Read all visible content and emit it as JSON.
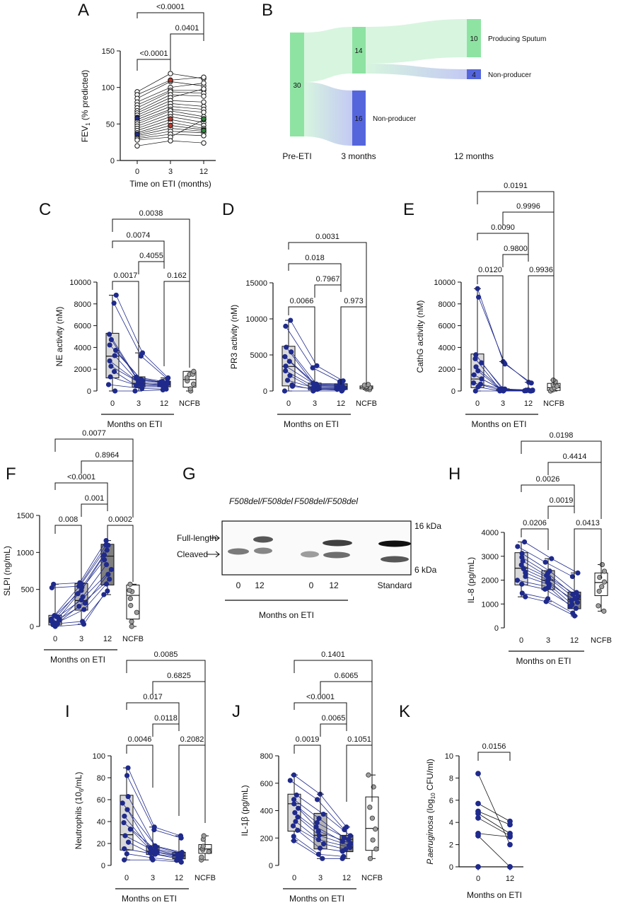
{
  "colors": {
    "navy": "#1f2a8c",
    "box_light": "#d9d9d9",
    "box_mid": "#b3b3b3",
    "box_dark": "#7f7f7f",
    "ncfb_point": "#9e9e9e",
    "green_node": "#8ee3a3",
    "blue_node": "#5566dd",
    "red_point": "#c0392b",
    "green_point": "#2e8b3e"
  },
  "xlabels": {
    "months_on_eti": "Months on ETI",
    "time_on_eti": "Time on ETI (months)"
  },
  "chart_data": [
    {
      "panel": "A",
      "type": "line",
      "ylabel": "FEV1 (% predicted)",
      "xlabel": "Time on ETI (months)",
      "categories": [
        "0",
        "3",
        "12"
      ],
      "ylim": [
        0,
        150
      ],
      "yticks": [
        0,
        50,
        100,
        150
      ],
      "series": [
        {
          "values": [
            94,
            119,
            112
          ]
        },
        {
          "values": [
            90,
            110,
            114
          ]
        },
        {
          "values": [
            85,
            108,
            102
          ]
        },
        {
          "values": [
            80,
            100,
            106
          ]
        },
        {
          "values": [
            76,
            96,
            96
          ]
        },
        {
          "values": [
            72,
            94,
            92
          ]
        },
        {
          "values": [
            68,
            90,
            88
          ]
        },
        {
          "values": [
            65,
            86,
            98
          ]
        },
        {
          "values": [
            62,
            82,
            80
          ]
        },
        {
          "values": [
            59,
            78,
            74
          ]
        },
        {
          "values": [
            56,
            74,
            70
          ]
        },
        {
          "values": [
            53,
            70,
            66
          ]
        },
        {
          "values": [
            50,
            68,
            60
          ]
        },
        {
          "values": [
            47,
            64,
            57
          ]
        },
        {
          "values": [
            44,
            60,
            52
          ]
        },
        {
          "values": [
            41,
            56,
            48
          ]
        },
        {
          "values": [
            38,
            52,
            44
          ]
        },
        {
          "values": [
            36,
            48,
            42
          ]
        },
        {
          "values": [
            34,
            44,
            40
          ]
        },
        {
          "values": [
            32,
            40,
            38
          ]
        },
        {
          "values": [
            30,
            36,
            34
          ]
        },
        {
          "values": [
            28,
            32,
            56
          ]
        },
        {
          "values": [
            20,
            27,
            24
          ]
        }
      ],
      "highlight": {
        "blue": [
          [
            0,
            58
          ],
          [
            0,
            36
          ]
        ],
        "red": [
          [
            3,
            110
          ],
          [
            3,
            57
          ],
          [
            3,
            48
          ]
        ],
        "green": [
          [
            12,
            57
          ],
          [
            12,
            41
          ]
        ]
      },
      "comparisons": [
        {
          "from": "0",
          "to": "12",
          "label": "<0.0001"
        },
        {
          "from": "3",
          "to": "12",
          "label": "0.0401"
        },
        {
          "from": "0",
          "to": "3",
          "label": "<0.0001"
        }
      ]
    },
    {
      "panel": "B",
      "type": "sankey",
      "columns": [
        "Pre-ETI",
        "3 months",
        "12 months"
      ],
      "nodes": [
        {
          "label": "",
          "value": "30",
          "color": "green"
        },
        {
          "label": "",
          "value": "14",
          "color": "green"
        },
        {
          "label": "Non-producer",
          "value": "16",
          "color": "blue"
        },
        {
          "label": "Producing Sputum",
          "value": "10",
          "color": "green"
        },
        {
          "label": "Non-producer",
          "value": "4",
          "color": "blue"
        }
      ]
    },
    {
      "panel": "C",
      "type": "box",
      "ylabel": "NE activity (nM)",
      "xlabel": "Months on ETI",
      "categories": [
        "0",
        "3",
        "12",
        "NCFB"
      ],
      "ylim": [
        0,
        10000
      ],
      "yticks": [
        0,
        2000,
        4000,
        6000,
        8000,
        10000
      ],
      "boxes": [
        {
          "q1": 1200,
          "med": 3200,
          "q3": 5300,
          "min": 0,
          "max": 8800,
          "fill": "light"
        },
        {
          "q1": 350,
          "med": 700,
          "q3": 1300,
          "min": 0,
          "max": 3500,
          "fill": "mid"
        },
        {
          "q1": 380,
          "med": 600,
          "q3": 900,
          "min": 100,
          "max": 1200,
          "fill": "dark"
        },
        {
          "q1": 350,
          "med": 1050,
          "q3": 1800,
          "min": 0,
          "max": 1800,
          "fill": "white"
        }
      ],
      "comparisons": [
        {
          "from": "0",
          "to": "NCFB",
          "label": "0.0038"
        },
        {
          "from": "0",
          "to": "12",
          "label": "0.0074"
        },
        {
          "from": "3",
          "to": "12",
          "label": "0.4055"
        },
        {
          "from": "0",
          "to": "3",
          "label": "0.0017"
        },
        {
          "from": "12",
          "to": "NCFB",
          "label": "0.162"
        }
      ]
    },
    {
      "panel": "D",
      "type": "box",
      "ylabel": "PR3 activity (nM)",
      "xlabel": "Months on ETI",
      "categories": [
        "0",
        "3",
        "12",
        "NCFB"
      ],
      "ylim": [
        0,
        15000
      ],
      "yticks": [
        0,
        5000,
        10000,
        15000
      ],
      "boxes": [
        {
          "q1": 700,
          "med": 3400,
          "q3": 6200,
          "min": 0,
          "max": 9800,
          "fill": "light"
        },
        {
          "q1": 150,
          "med": 450,
          "q3": 1100,
          "min": 0,
          "max": 3500,
          "fill": "mid"
        },
        {
          "q1": 200,
          "med": 600,
          "q3": 1000,
          "min": 0,
          "max": 1400,
          "fill": "dark"
        },
        {
          "q1": 300,
          "med": 500,
          "q3": 700,
          "min": 200,
          "max": 900,
          "fill": "white"
        }
      ],
      "comparisons": [
        {
          "from": "0",
          "to": "NCFB",
          "label": "0.0031"
        },
        {
          "from": "0",
          "to": "12",
          "label": "0.018"
        },
        {
          "from": "3",
          "to": "12",
          "label": "0.7967"
        },
        {
          "from": "0",
          "to": "3",
          "label": "0.0066"
        },
        {
          "from": "12",
          "to": "NCFB",
          "label": "0.973"
        }
      ]
    },
    {
      "panel": "E",
      "type": "box",
      "ylabel": "CathG activity (nM)",
      "xlabel": "Months on ETI",
      "categories": [
        "0",
        "3",
        "12",
        "NCFB"
      ],
      "ylim": [
        0,
        10000
      ],
      "yticks": [
        0,
        2000,
        4000,
        6000,
        8000,
        10000
      ],
      "boxes": [
        {
          "q1": 300,
          "med": 1100,
          "q3": 3400,
          "min": 0,
          "max": 9400,
          "fill": "light"
        },
        {
          "q1": 0,
          "med": 50,
          "q3": 200,
          "min": 0,
          "max": 2700,
          "fill": "mid"
        },
        {
          "q1": 0,
          "med": 50,
          "q3": 100,
          "min": 0,
          "max": 800,
          "fill": "dark"
        },
        {
          "q1": 50,
          "med": 300,
          "q3": 700,
          "min": 0,
          "max": 1000,
          "fill": "white"
        }
      ],
      "comparisons": [
        {
          "from": "0",
          "to": "NCFB",
          "label": "0.0191"
        },
        {
          "from": "3",
          "to": "NCFB",
          "label": "0.9996"
        },
        {
          "from": "0",
          "to": "12",
          "label": "0.0090"
        },
        {
          "from": "3",
          "to": "12",
          "label": "0.9800"
        },
        {
          "from": "0",
          "to": "3",
          "label": "0.0120"
        },
        {
          "from": "12",
          "to": "NCFB",
          "label": "0.9936"
        }
      ]
    },
    {
      "panel": "F",
      "type": "box",
      "ylabel": "SLPI (ng/mL)",
      "xlabel": "Months on ETI",
      "categories": [
        "0",
        "3",
        "12",
        "NCFB"
      ],
      "ylim": [
        0,
        1500
      ],
      "yticks": [
        0,
        500,
        1000,
        1500
      ],
      "boxes": [
        {
          "q1": 20,
          "med": 60,
          "q3": 150,
          "min": 0,
          "max": 570,
          "fill": "light"
        },
        {
          "q1": 220,
          "med": 350,
          "q3": 580,
          "min": 30,
          "max": 590,
          "fill": "mid"
        },
        {
          "q1": 560,
          "med": 950,
          "q3": 1110,
          "min": 430,
          "max": 1160,
          "fill": "dark"
        },
        {
          "q1": 100,
          "med": 420,
          "q3": 560,
          "min": 0,
          "max": 570,
          "fill": "white"
        }
      ],
      "comparisons": [
        {
          "from": "0",
          "to": "NCFB",
          "label": "0.0077"
        },
        {
          "from": "3",
          "to": "NCFB",
          "label": "0.8964"
        },
        {
          "from": "0",
          "to": "12",
          "label": "<0.0001"
        },
        {
          "from": "3",
          "to": "12",
          "label": "0.001"
        },
        {
          "from": "0",
          "to": "3",
          "label": "0.008"
        },
        {
          "from": "12",
          "to": "NCFB",
          "label": "0.0002"
        }
      ]
    },
    {
      "panel": "G",
      "type": "blot",
      "genotypes": [
        "F508del/F508del",
        "F508del/F508del"
      ],
      "band_labels": [
        "Full-length",
        "Cleaved"
      ],
      "markers": [
        "16 kDa",
        "6 kDa"
      ],
      "lanes": [
        "0",
        "12",
        "0",
        "12",
        "Standard"
      ],
      "xlabel": "Months on ETI"
    },
    {
      "panel": "H",
      "type": "box",
      "ylabel": "IL-8 (pg/mL)",
      "xlabel": "Months on ETI",
      "categories": [
        "0",
        "3",
        "12",
        "NCFB"
      ],
      "ylim": [
        0,
        4000
      ],
      "yticks": [
        0,
        1000,
        2000,
        3000,
        4000
      ],
      "boxes": [
        {
          "q1": 1800,
          "med": 2500,
          "q3": 3150,
          "min": 1300,
          "max": 3600,
          "fill": "light"
        },
        {
          "q1": 1600,
          "med": 2000,
          "q3": 2400,
          "min": 1100,
          "max": 2900,
          "fill": "mid"
        },
        {
          "q1": 800,
          "med": 1200,
          "q3": 1500,
          "min": 500,
          "max": 2300,
          "fill": "dark"
        },
        {
          "q1": 1350,
          "med": 1900,
          "q3": 2300,
          "min": 700,
          "max": 2650,
          "fill": "white"
        }
      ],
      "comparisons": [
        {
          "from": "0",
          "to": "NCFB",
          "label": "0.0198"
        },
        {
          "from": "3",
          "to": "NCFB",
          "label": "0.4414"
        },
        {
          "from": "0",
          "to": "12",
          "label": "0.0026"
        },
        {
          "from": "3",
          "to": "12",
          "label": "0.0019"
        },
        {
          "from": "0",
          "to": "3",
          "label": "0.0206"
        },
        {
          "from": "12",
          "to": "NCFB",
          "label": "0.0413"
        }
      ]
    },
    {
      "panel": "I",
      "type": "box",
      "ylabel": "Neutrophils (10^6/mL)",
      "xlabel": "Months on ETI",
      "categories": [
        "0",
        "3",
        "12",
        "NCFB"
      ],
      "ylim": [
        0,
        100
      ],
      "yticks": [
        0,
        20,
        40,
        60,
        80,
        100
      ],
      "boxes": [
        {
          "q1": 14,
          "med": 28,
          "q3": 64,
          "min": 5,
          "max": 89,
          "fill": "light"
        },
        {
          "q1": 10,
          "med": 13,
          "q3": 18,
          "min": 5,
          "max": 35,
          "fill": "mid"
        },
        {
          "q1": 6,
          "med": 9,
          "q3": 12,
          "min": 3,
          "max": 27,
          "fill": "dark"
        },
        {
          "q1": 11,
          "med": 15,
          "q3": 19,
          "min": 5,
          "max": 27,
          "fill": "white"
        }
      ],
      "comparisons": [
        {
          "from": "0",
          "to": "NCFB",
          "label": "0.0085"
        },
        {
          "from": "3",
          "to": "NCFB",
          "label": "0.6825"
        },
        {
          "from": "0",
          "to": "12",
          "label": "0.017"
        },
        {
          "from": "3",
          "to": "12",
          "label": "0.0118"
        },
        {
          "from": "0",
          "to": "3",
          "label": "0.0046"
        },
        {
          "from": "12",
          "to": "NCFB",
          "label": "0.2082"
        }
      ]
    },
    {
      "panel": "J",
      "type": "box",
      "ylabel": "IL-1β (pg/mL)",
      "xlabel": "Months on ETI",
      "categories": [
        "0",
        "3",
        "12",
        "NCFB"
      ],
      "ylim": [
        0,
        800
      ],
      "yticks": [
        0,
        200,
        400,
        600,
        800
      ],
      "boxes": [
        {
          "q1": 250,
          "med": 450,
          "q3": 520,
          "min": 180,
          "max": 660,
          "fill": "light"
        },
        {
          "q1": 120,
          "med": 220,
          "q3": 380,
          "min": 50,
          "max": 520,
          "fill": "mid"
        },
        {
          "q1": 100,
          "med": 190,
          "q3": 220,
          "min": 50,
          "max": 280,
          "fill": "dark"
        },
        {
          "q1": 110,
          "med": 270,
          "q3": 500,
          "min": 50,
          "max": 660,
          "fill": "white"
        }
      ],
      "comparisons": [
        {
          "from": "0",
          "to": "NCFB",
          "label": "0.1401"
        },
        {
          "from": "3",
          "to": "NCFB",
          "label": "0.6065"
        },
        {
          "from": "0",
          "to": "12",
          "label": "<0.0001"
        },
        {
          "from": "3",
          "to": "12",
          "label": "0.0065"
        },
        {
          "from": "0",
          "to": "3",
          "label": "0.0019"
        },
        {
          "from": "12",
          "to": "NCFB",
          "label": "0.1051"
        }
      ]
    },
    {
      "panel": "K",
      "type": "line",
      "ylabel": "P.aeruginosa (log10 CFU/ml)",
      "xlabel": "Months on ETI",
      "categories": [
        "0",
        "12"
      ],
      "ylim": [
        0,
        10
      ],
      "yticks": [
        0,
        2,
        4,
        6,
        8,
        10
      ],
      "series": [
        {
          "values": [
            8.4,
            2.0
          ]
        },
        {
          "values": [
            5.7,
            4.1
          ]
        },
        {
          "values": [
            5.0,
            3.8
          ]
        },
        {
          "values": [
            4.8,
            3.0
          ]
        },
        {
          "values": [
            4.4,
            2.8
          ]
        },
        {
          "values": [
            3.0,
            2.7
          ]
        },
        {
          "values": [
            2.8,
            0.0
          ]
        },
        {
          "values": [
            0.0,
            0.0
          ]
        }
      ],
      "comparisons": [
        {
          "from": "0",
          "to": "12",
          "label": "0.0156"
        }
      ]
    }
  ]
}
